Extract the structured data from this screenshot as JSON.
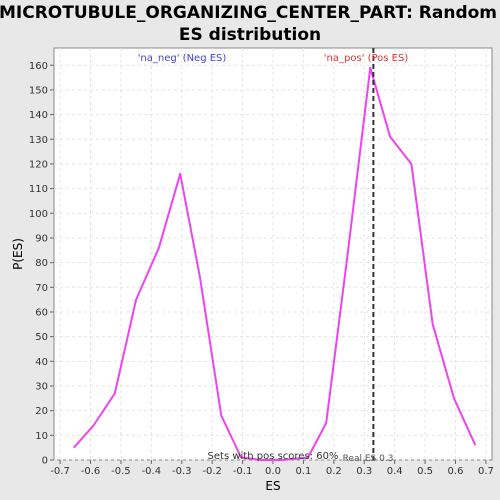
{
  "chart_data": {
    "type": "line",
    "title_line1": "MICROTUBULE_ORGANIZING_CENTER_PART: Random",
    "title_line2": "ES distribution",
    "xlabel": "ES",
    "ylabel": "P(ES)",
    "xlim": [
      -0.72,
      0.72
    ],
    "ylim": [
      0,
      167
    ],
    "xticks": [
      -0.7,
      -0.6,
      -0.5,
      -0.4,
      -0.3,
      -0.2,
      -0.1,
      0.0,
      0.1,
      0.2,
      0.3,
      0.4,
      0.5,
      0.6,
      0.7
    ],
    "xtick_labels": [
      "-0.7",
      "-0.6",
      "-0.5",
      "-0.4",
      "-0.3",
      "-0.2",
      "-0.1",
      "0.0",
      "0.1",
      "0.2",
      "0.3",
      "0.4",
      "0.5",
      "0.6",
      "0.7"
    ],
    "yticks": [
      0,
      10,
      20,
      30,
      40,
      50,
      60,
      70,
      80,
      90,
      100,
      110,
      120,
      130,
      140,
      150,
      160
    ],
    "grid": true,
    "series": [
      {
        "color": "#ee44ee",
        "x": [
          -0.655,
          -0.59,
          -0.52,
          -0.45,
          -0.375,
          -0.305,
          -0.24,
          -0.17,
          -0.105,
          -0.04,
          0.03,
          0.115,
          0.175,
          0.245,
          0.32,
          0.385,
          0.455,
          0.525,
          0.595,
          0.665
        ],
        "y": [
          5,
          14,
          27,
          65,
          86,
          116,
          74,
          18,
          1,
          0,
          0,
          1,
          15,
          83,
          159,
          131,
          120,
          55,
          25,
          6
        ]
      }
    ],
    "real_es": 0.33,
    "colors": {
      "line": "#ee44ee",
      "neg": "#4444cc",
      "pos": "#dd3333",
      "marker": "#333333"
    },
    "annotations": {
      "neg_label": "'na_neg' (Neg ES)",
      "pos_label": "'na_pos' (Pos ES)",
      "pos_scores": "Sets with pos scores: 60%",
      "real_es_label": "Real ES 0.3"
    }
  }
}
